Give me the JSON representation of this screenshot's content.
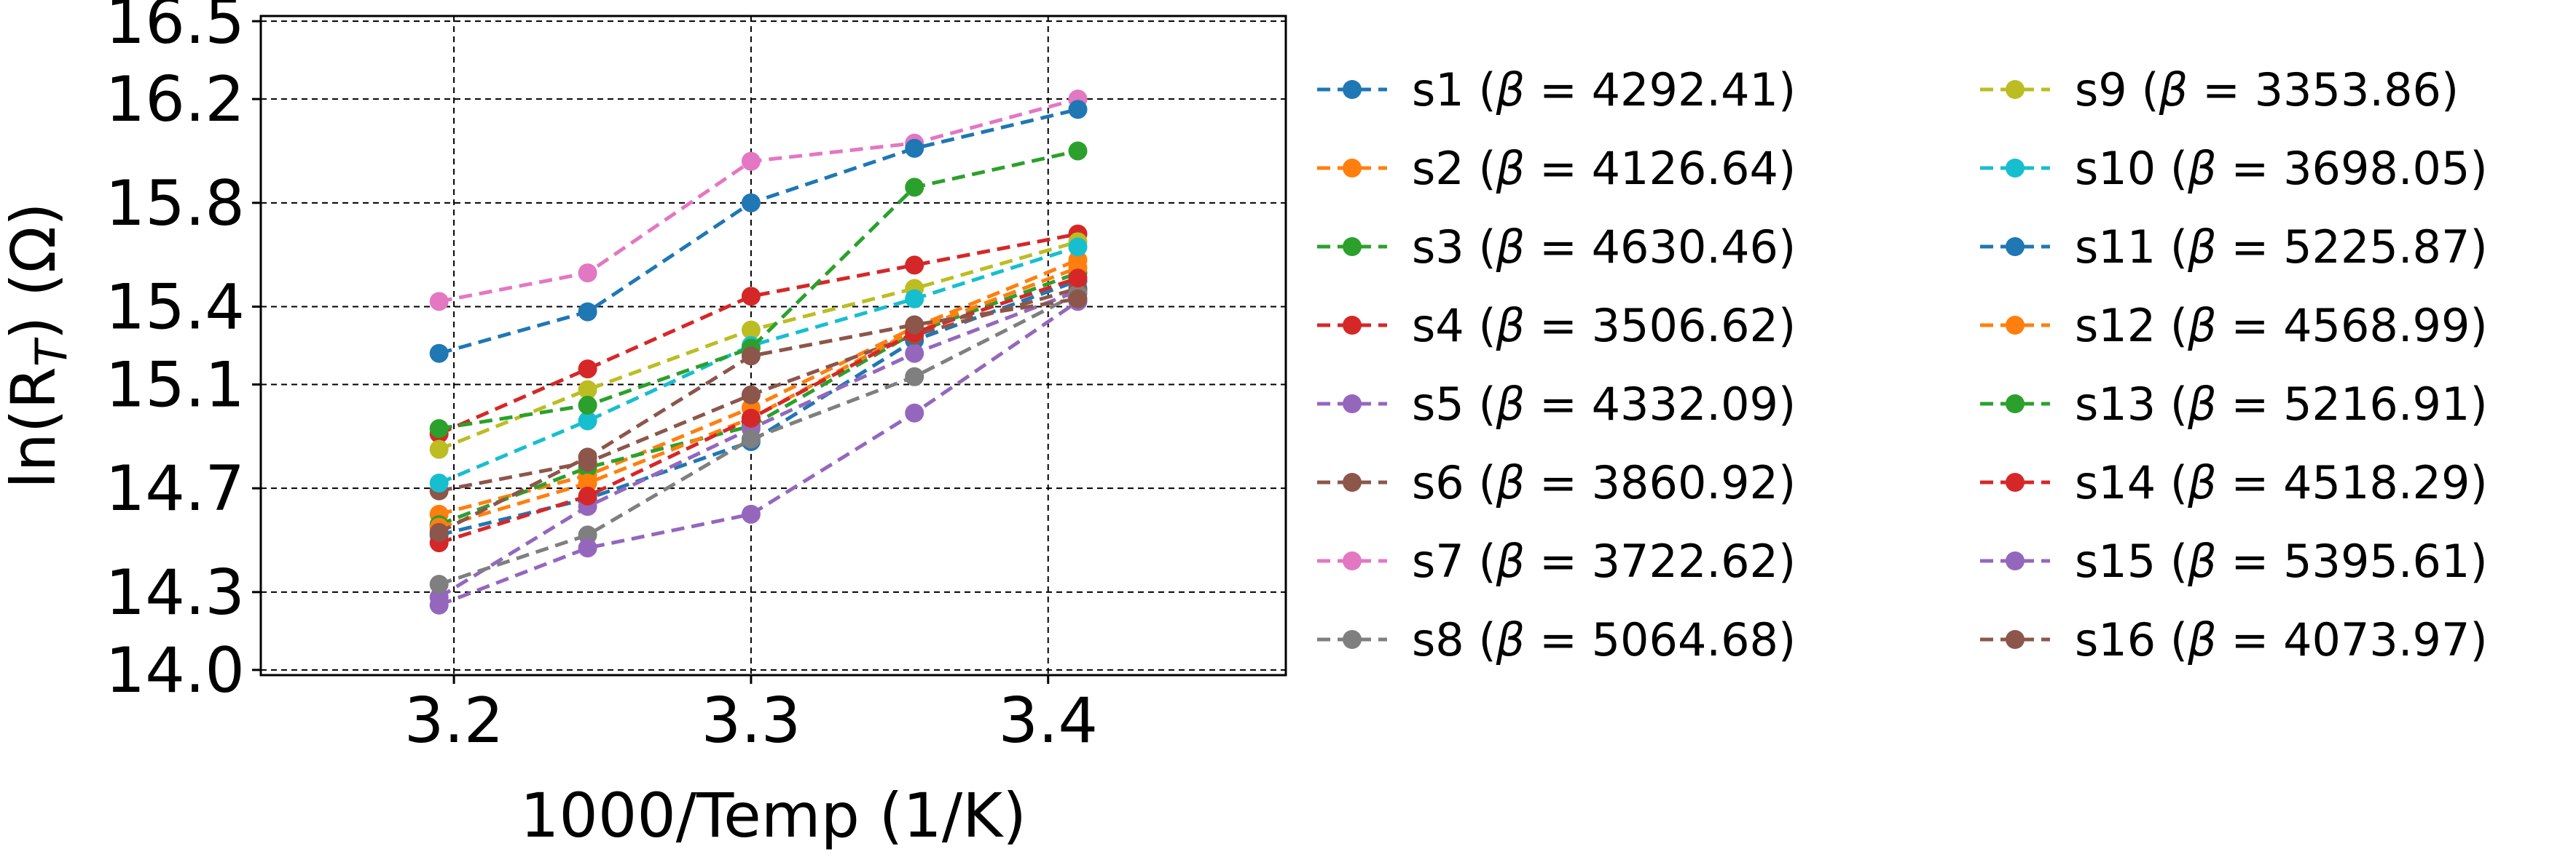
{
  "chart_data": {
    "type": "line",
    "xlabel": "1000/Temp (1/K)",
    "ylabel": "ln(R_T) (Ω)",
    "xlim": [
      3.135,
      3.48
    ],
    "ylim": [
      13.98,
      16.52
    ],
    "grid": true,
    "legend_position": "right",
    "x": [
      3.195,
      3.245,
      3.3,
      3.355,
      3.41
    ],
    "x_ticks": [
      "3.2",
      "3.3",
      "3.4"
    ],
    "x_tick_values": [
      3.2,
      3.3,
      3.4
    ],
    "y_ticks": [
      "14.0",
      "14.3",
      "14.7",
      "15.1",
      "15.4",
      "15.8",
      "16.2",
      "16.5"
    ],
    "y_tick_values": [
      14.0,
      14.3,
      14.7,
      15.1,
      15.4,
      15.8,
      16.2,
      16.5
    ],
    "series": [
      {
        "name": "s1",
        "beta": "4292.41",
        "color": "#1f77b4",
        "values": [
          14.52,
          14.66,
          14.88,
          15.27,
          15.5
        ]
      },
      {
        "name": "s2",
        "beta": "4126.64",
        "color": "#ff7f0e",
        "values": [
          14.6,
          14.75,
          15.01,
          15.32,
          15.58
        ]
      },
      {
        "name": "s3",
        "beta": "4630.46",
        "color": "#2ca02c",
        "values": [
          14.56,
          14.78,
          14.94,
          15.3,
          15.53
        ]
      },
      {
        "name": "s4",
        "beta": "3506.62",
        "color": "#d62728",
        "values": [
          14.91,
          15.16,
          15.44,
          15.56,
          15.68
        ]
      },
      {
        "name": "s5",
        "beta": "4332.09",
        "color": "#9467bd",
        "values": [
          14.28,
          14.63,
          14.93,
          15.22,
          15.46
        ]
      },
      {
        "name": "s6",
        "beta": "3860.92",
        "color": "#8c564b",
        "values": [
          14.69,
          14.8,
          15.06,
          15.29,
          15.47
        ]
      },
      {
        "name": "s7",
        "beta": "3722.62",
        "color": "#e377c2",
        "values": [
          15.42,
          15.53,
          15.96,
          16.03,
          16.2
        ]
      },
      {
        "name": "s8",
        "beta": "5064.68",
        "color": "#7f7f7f",
        "values": [
          14.33,
          14.52,
          14.89,
          15.13,
          15.45
        ]
      },
      {
        "name": "s9",
        "beta": "3353.86",
        "color": "#bcbd22",
        "values": [
          14.85,
          15.08,
          15.31,
          15.47,
          15.65
        ]
      },
      {
        "name": "s10",
        "beta": "3698.05",
        "color": "#17becf",
        "values": [
          14.72,
          14.96,
          15.25,
          15.43,
          15.63
        ]
      },
      {
        "name": "s11",
        "beta": "5225.87",
        "color": "#1f77b4",
        "values": [
          15.22,
          15.38,
          15.8,
          16.01,
          16.16
        ]
      },
      {
        "name": "s12",
        "beta": "4568.99",
        "color": "#ff7f0e",
        "values": [
          14.55,
          14.72,
          14.97,
          15.31,
          15.55
        ]
      },
      {
        "name": "s13",
        "beta": "5216.91",
        "color": "#2ca02c",
        "values": [
          14.93,
          15.02,
          15.24,
          15.86,
          16.0
        ]
      },
      {
        "name": "s14",
        "beta": "4518.29",
        "color": "#d62728",
        "values": [
          14.49,
          14.67,
          14.97,
          15.3,
          15.51
        ]
      },
      {
        "name": "s15",
        "beta": "5395.61",
        "color": "#9467bd",
        "values": [
          14.25,
          14.47,
          14.6,
          14.99,
          15.42
        ]
      },
      {
        "name": "s16",
        "beta": "4073.97",
        "color": "#8c564b",
        "values": [
          14.53,
          14.82,
          15.21,
          15.33,
          15.43
        ]
      }
    ]
  }
}
